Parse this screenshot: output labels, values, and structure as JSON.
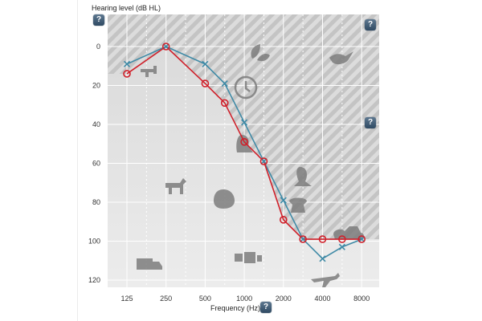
{
  "chart_data": {
    "type": "line",
    "ylabel": "Hearing level (dB HL)",
    "xlabel": "Frequency (Hz)",
    "x_categories": [
      "125",
      "250",
      "500",
      "1000",
      "2000",
      "4000",
      "8000"
    ],
    "x_positions": [
      0,
      1,
      2,
      3,
      4,
      5,
      6
    ],
    "ylim": [
      0,
      120
    ],
    "y_reversed": true,
    "y_ticks": [
      0,
      20,
      40,
      60,
      80,
      100,
      120
    ],
    "grid": true,
    "series": [
      {
        "marker": "x",
        "color": "#3f8aa6",
        "points": [
          {
            "x": 0,
            "y": 9
          },
          {
            "x": 1,
            "y": 0
          },
          {
            "x": 2,
            "y": 9
          },
          {
            "x": 2.5,
            "y": 19
          },
          {
            "x": 3,
            "y": 39
          },
          {
            "x": 3.5,
            "y": 59
          },
          {
            "x": 4,
            "y": 79
          },
          {
            "x": 4.5,
            "y": 99
          },
          {
            "x": 5,
            "y": 109
          },
          {
            "x": 5.5,
            "y": 103
          },
          {
            "x": 6,
            "y": 99
          }
        ]
      },
      {
        "marker": "o",
        "color": "#d0202a",
        "points": [
          {
            "x": 0,
            "y": 14
          },
          {
            "x": 1,
            "y": 0
          },
          {
            "x": 2,
            "y": 19
          },
          {
            "x": 2.5,
            "y": 29
          },
          {
            "x": 3,
            "y": 49
          },
          {
            "x": 3.5,
            "y": 59
          },
          {
            "x": 4,
            "y": 89
          },
          {
            "x": 4.5,
            "y": 99
          },
          {
            "x": 5,
            "y": 99
          },
          {
            "x": 5.5,
            "y": 99
          },
          {
            "x": 6,
            "y": 99
          }
        ]
      }
    ]
  },
  "help": {
    "symbol": "?"
  },
  "icons": [
    "faucet-icon",
    "leaves-icon",
    "bird-icon",
    "clock-icon",
    "speech-icon",
    "vacuum-icon",
    "dog-icon",
    "baby-icon",
    "telephone-icon",
    "motorcycle-icon",
    "truck-icon",
    "drums-icon",
    "airplane-icon"
  ]
}
